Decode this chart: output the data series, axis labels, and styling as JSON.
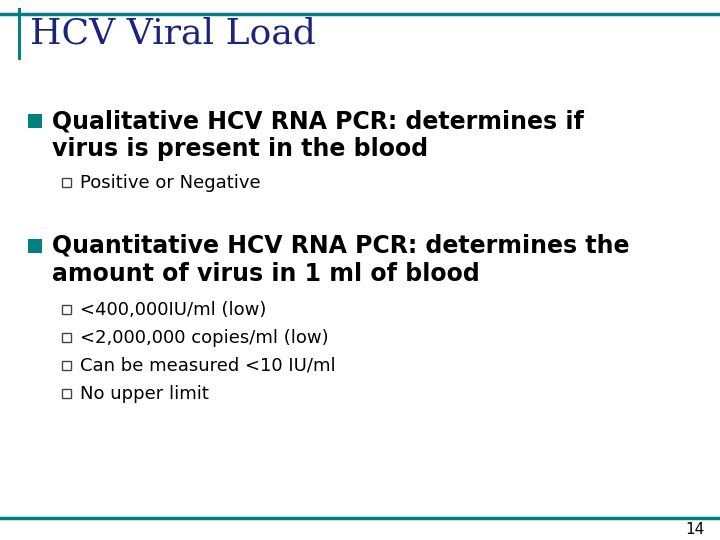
{
  "title": "HCV Viral Load",
  "title_color": "#1a237e",
  "title_fontsize": 26,
  "background_color": "#ffffff",
  "border_color": "#008080",
  "bullet_color": "#008080",
  "sub_bullet_border_color": "#444444",
  "text_color": "#000000",
  "page_number": "14",
  "bullet1_line1": "Qualitative HCV RNA PCR: determines if",
  "bullet1_line2": "virus is present in the blood",
  "bullet1_sub": [
    "Positive or Negative"
  ],
  "bullet2_line1": "Quantitative HCV RNA PCR: determines the",
  "bullet2_line2": "amount of virus in 1 ml of blood",
  "bullet2_sub": [
    "<400,000IU/ml (low)",
    "<2,000,000 copies/ml (low)",
    "Can be measured <10 IU/ml",
    "No upper limit"
  ],
  "bullet_fontsize": 17,
  "sub_bullet_fontsize": 13,
  "title_bar_color": "#008080"
}
